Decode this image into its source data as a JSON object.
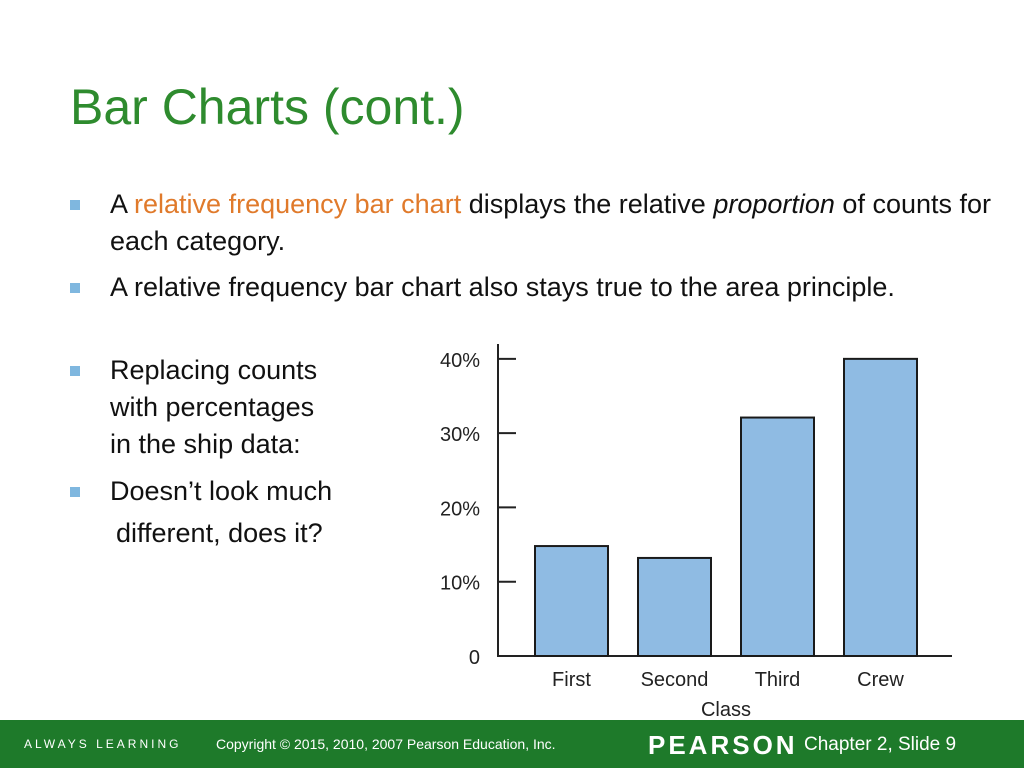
{
  "slide": {
    "title": "Bar Charts (cont.)",
    "bullet1": {
      "before": "A ",
      "highlight": "relative frequency bar chart",
      "middle": " displays the relative ",
      "emphasis": "proportion",
      "after": " of counts for each category."
    },
    "bullet2": "A relative frequency bar chart also stays true to the area principle.",
    "bullet3": [
      "Replacing counts",
      "with percentages",
      "in the ship data:"
    ],
    "bullet4": "Doesn’t look much",
    "bullet4_cont": "different, does it?"
  },
  "chart_data": {
    "type": "bar",
    "categories": [
      "First",
      "Second",
      "Third",
      "Crew"
    ],
    "values": [
      14.8,
      13.2,
      32.1,
      40.0
    ],
    "xlabel": "Class",
    "ylabel": "",
    "ylim": [
      0,
      42
    ],
    "yticks": [
      {
        "value": 0,
        "label": "0"
      },
      {
        "value": 10,
        "label": "10%"
      },
      {
        "value": 20,
        "label": "20%"
      },
      {
        "value": 30,
        "label": "30%"
      },
      {
        "value": 40,
        "label": "40%"
      }
    ],
    "bar_color": "#8fbbe3",
    "grid": false
  },
  "footer": {
    "tagline": "ALWAYS LEARNING",
    "copyright": "Copyright © 2015, 2010, 2007 Pearson Education, Inc.",
    "brand": "PEARSON",
    "page": "Chapter 2, Slide 9"
  },
  "colors": {
    "title": "#2e8b2e",
    "highlight": "#e07a2b",
    "bullet": "#7fb7df",
    "footer": "#1e7a2a"
  }
}
